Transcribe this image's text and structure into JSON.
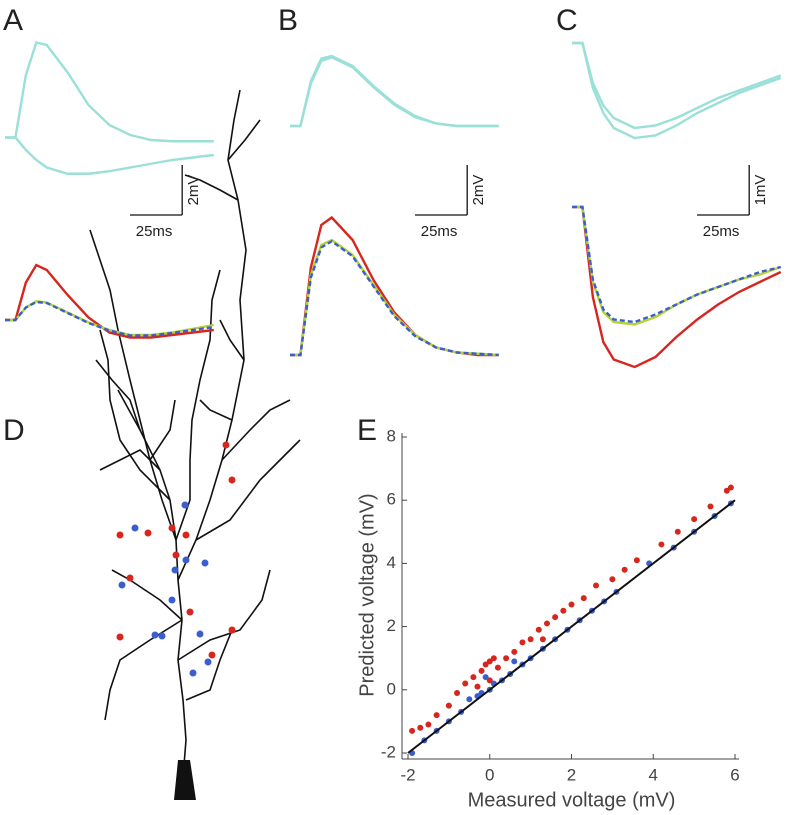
{
  "chart_data": [
    {
      "type": "line",
      "panel": "A",
      "x": [
        0,
        5,
        10,
        15,
        20,
        30,
        40,
        50,
        60,
        70,
        80,
        90,
        100
      ],
      "xlim": [
        0,
        103
      ],
      "ylim": [
        -2.1,
        4.3
      ],
      "scalebar": {
        "x": 25,
        "x_label": "25ms",
        "y": 2,
        "y_label": "2mV"
      },
      "series": [
        {
          "color": "#9be0d8",
          "values": [
            0,
            0,
            2.5,
            3.8,
            3.7,
            2.6,
            1.3,
            0.5,
            0.1,
            -0.1,
            -0.15,
            -0.15,
            -0.15
          ]
        },
        {
          "color": "#9be0d8",
          "values": [
            0,
            0,
            -0.5,
            -0.9,
            -1.2,
            -1.45,
            -1.45,
            -1.35,
            -1.2,
            -1.05,
            -0.9,
            -0.8,
            -0.7
          ]
        }
      ]
    },
    {
      "type": "line",
      "x": [
        0,
        5,
        10,
        15,
        20,
        30,
        40,
        50,
        60,
        70,
        80,
        90,
        100
      ],
      "xlim": [
        0,
        103
      ],
      "ylim": [
        -2.8,
        3.6
      ],
      "series": [
        {
          "color": "#d7261e",
          "values": [
            0,
            0,
            1.5,
            2.2,
            2.0,
            1.0,
            0.1,
            -0.5,
            -0.7,
            -0.7,
            -0.6,
            -0.5,
            -0.4
          ]
        },
        {
          "color": "#b5d334",
          "values": [
            0,
            0,
            0.5,
            0.75,
            0.7,
            0.3,
            -0.1,
            -0.4,
            -0.6,
            -0.6,
            -0.5,
            -0.35,
            -0.2
          ]
        },
        {
          "color": "#3a5fcd",
          "linestyle": "dashed",
          "values": [
            0,
            0,
            0.5,
            0.72,
            0.68,
            0.28,
            -0.12,
            -0.42,
            -0.62,
            -0.62,
            -0.52,
            -0.4,
            -0.28
          ]
        }
      ]
    },
    {
      "type": "line",
      "panel": "B",
      "x": [
        0,
        5,
        10,
        15,
        20,
        30,
        40,
        50,
        60,
        70,
        80,
        90,
        100
      ],
      "xlim": [
        0,
        103
      ],
      "ylim": [
        -2.56,
        3.84
      ],
      "scalebar": {
        "x": 25,
        "x_label": "25ms",
        "y": 2,
        "y_label": "2mV"
      },
      "series": [
        {
          "color": "#9be0d8",
          "values": [
            0,
            0,
            1.8,
            2.7,
            2.8,
            2.4,
            1.6,
            0.9,
            0.4,
            0.1,
            0,
            0,
            0
          ]
        },
        {
          "color": "#9be0d8",
          "values": [
            0,
            0,
            1.7,
            2.6,
            2.75,
            2.35,
            1.55,
            0.85,
            0.35,
            0.1,
            0,
            0,
            0
          ]
        }
      ]
    },
    {
      "type": "line",
      "x": [
        0,
        5,
        10,
        15,
        20,
        30,
        40,
        50,
        60,
        70,
        80,
        90,
        100
      ],
      "xlim": [
        0,
        103
      ],
      "ylim": [
        -1.4,
        5.8
      ],
      "series": [
        {
          "color": "#d7261e",
          "values": [
            0,
            0,
            3.5,
            5.2,
            5.5,
            4.6,
            3.0,
            1.7,
            0.8,
            0.3,
            0.1,
            0,
            0
          ]
        },
        {
          "color": "#b5d334",
          "values": [
            0,
            0,
            3.2,
            4.4,
            4.6,
            4.0,
            2.8,
            1.6,
            0.8,
            0.3,
            0.1,
            0.05,
            0
          ]
        },
        {
          "color": "#3a5fcd",
          "linestyle": "dashed",
          "values": [
            0,
            0,
            3.1,
            4.3,
            4.55,
            3.95,
            2.75,
            1.55,
            0.75,
            0.3,
            0.1,
            0.05,
            0
          ]
        }
      ]
    },
    {
      "type": "line",
      "panel": "C",
      "x": [
        0,
        5,
        10,
        15,
        20,
        30,
        40,
        50,
        60,
        70,
        80,
        90,
        100
      ],
      "xlim": [
        0,
        103
      ],
      "ylim": [
        -2.94,
        0.26
      ],
      "scalebar": {
        "x": 25,
        "x_label": "25ms",
        "y": 1,
        "y_label": "1mV"
      },
      "series": [
        {
          "color": "#9be0d8",
          "values": [
            0,
            0,
            -0.9,
            -1.4,
            -1.7,
            -1.9,
            -1.85,
            -1.65,
            -1.4,
            -1.2,
            -1.0,
            -0.85,
            -0.7
          ]
        },
        {
          "color": "#9be0d8",
          "values": [
            0,
            0,
            -0.8,
            -1.25,
            -1.5,
            -1.7,
            -1.65,
            -1.5,
            -1.3,
            -1.1,
            -0.95,
            -0.8,
            -0.65
          ]
        }
      ]
    },
    {
      "type": "line",
      "x": [
        0,
        5,
        10,
        15,
        20,
        30,
        40,
        50,
        60,
        70,
        80,
        90,
        100
      ],
      "xlim": [
        0,
        103
      ],
      "ylim": [
        -3.66,
        0.34
      ],
      "series": [
        {
          "color": "#d7261e",
          "values": [
            0,
            0,
            -1.8,
            -2.7,
            -3.05,
            -3.2,
            -3.0,
            -2.6,
            -2.25,
            -1.95,
            -1.7,
            -1.5,
            -1.3
          ]
        },
        {
          "color": "#b5d334",
          "values": [
            0,
            0,
            -1.5,
            -2.1,
            -2.3,
            -2.35,
            -2.2,
            -1.95,
            -1.75,
            -1.6,
            -1.45,
            -1.35,
            -1.2
          ]
        },
        {
          "color": "#3a5fcd",
          "linestyle": "dashed",
          "values": [
            0,
            0,
            -1.45,
            -2.05,
            -2.25,
            -2.3,
            -2.15,
            -1.95,
            -1.75,
            -1.6,
            -1.45,
            -1.3,
            -1.2
          ]
        }
      ]
    },
    {
      "type": "morphology",
      "panel": "D"
    },
    {
      "type": "scatter",
      "panel": "E",
      "x_label": "Measured voltage (mV)",
      "y_label": "Predicted voltage (mV)",
      "xlim": [
        -2,
        6
      ],
      "ylim": [
        -2,
        8
      ],
      "xticks": [
        -2,
        0,
        2,
        4,
        6
      ],
      "yticks": [
        -2,
        0,
        2,
        4,
        6,
        8
      ],
      "identity_line": true,
      "series": [
        {
          "color": "#d7261e",
          "x": [
            -1.9,
            -1.7,
            -1.5,
            -1.3,
            -1.0,
            -0.8,
            -0.6,
            -0.4,
            -0.2,
            -0.1,
            0,
            0.1,
            0.2,
            0.4,
            0.6,
            0.8,
            1.0,
            1.2,
            1.4,
            1.6,
            1.8,
            2.0,
            2.3,
            2.6,
            3.0,
            3.3,
            3.6,
            4.2,
            4.6,
            5.0,
            5.4,
            5.8,
            5.9,
            0,
            -0.3,
            1.3
          ],
          "values": [
            -1.3,
            -1.2,
            -1.1,
            -0.8,
            -0.5,
            -0.1,
            0.2,
            0.4,
            0.6,
            0.8,
            0.9,
            1.0,
            0.7,
            1.0,
            1.2,
            1.5,
            1.6,
            1.9,
            2.1,
            2.3,
            2.5,
            2.7,
            2.9,
            3.3,
            3.5,
            3.8,
            4.1,
            4.6,
            5.0,
            5.4,
            5.8,
            6.3,
            6.4,
            0.3,
            0.1,
            1.6
          ]
        },
        {
          "color": "#3a5fcd",
          "x": [
            -1.9,
            -1.6,
            -1.3,
            -1.0,
            -0.7,
            -0.5,
            -0.3,
            -0.2,
            0,
            0.1,
            0.3,
            0.5,
            0.8,
            1.0,
            1.3,
            1.6,
            1.9,
            2.2,
            2.5,
            2.8,
            3.1,
            3.9,
            4.5,
            5.0,
            5.5,
            5.9,
            -0.1,
            0.6
          ],
          "values": [
            -2.0,
            -1.6,
            -1.3,
            -1.0,
            -0.7,
            -0.3,
            -0.2,
            -0.1,
            0,
            0.2,
            0.3,
            0.5,
            0.8,
            1.0,
            1.3,
            1.6,
            1.9,
            2.2,
            2.5,
            2.8,
            3.1,
            4.0,
            4.5,
            5.0,
            5.5,
            5.9,
            0.4,
            0.9
          ]
        }
      ]
    }
  ]
}
